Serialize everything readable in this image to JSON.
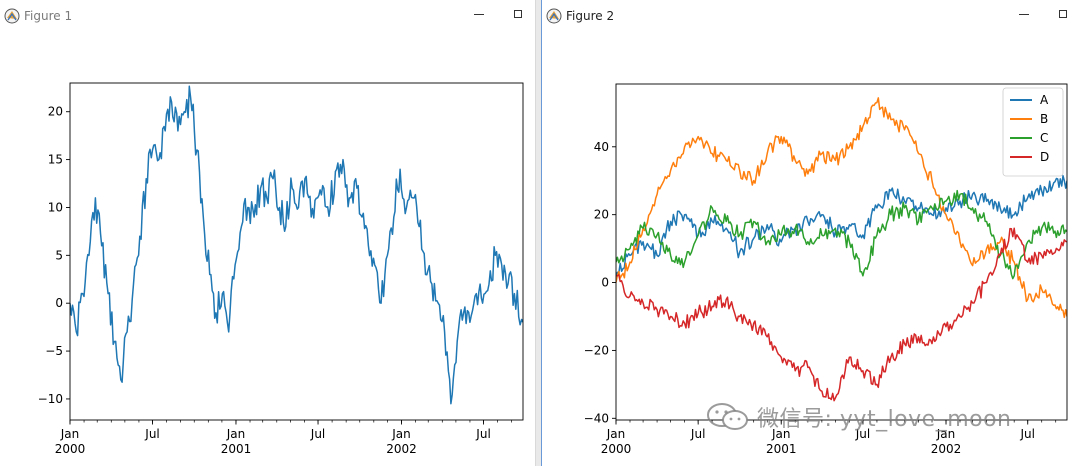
{
  "windows": [
    {
      "title": "Figure 1"
    },
    {
      "title": "Figure 2"
    }
  ],
  "watermark": "微信号: yyt_love_moon",
  "colors": {
    "A": "#1f77b4",
    "B": "#ff7f0e",
    "C": "#2ca02c",
    "D": "#d62728"
  },
  "chart_data": [
    {
      "type": "line",
      "title": "",
      "xlabel": "",
      "ylabel": "",
      "x_range": [
        "2000-01-01",
        "2002-09-26"
      ],
      "ylim": [
        -12.2,
        23
      ],
      "yticks": [
        -10,
        -5,
        0,
        5,
        10,
        15,
        20
      ],
      "xticks": [
        {
          "date": "2000-01-01",
          "label": "Jan",
          "sublabel": "2000"
        },
        {
          "date": "2000-07-01",
          "label": "Jul",
          "sublabel": ""
        },
        {
          "date": "2001-01-01",
          "label": "Jan",
          "sublabel": "2001"
        },
        {
          "date": "2001-07-01",
          "label": "Jul",
          "sublabel": ""
        },
        {
          "date": "2002-01-01",
          "label": "Jan",
          "sublabel": "2002"
        },
        {
          "date": "2002-07-01",
          "label": "Jul",
          "sublabel": ""
        }
      ],
      "grid": false,
      "series": [
        {
          "color": "#1f77b4",
          "points": [
            [
              "2000-01-01",
              0
            ],
            [
              "2000-01-15",
              -3
            ],
            [
              "2000-01-29",
              1
            ],
            [
              "2000-02-12",
              5
            ],
            [
              "2000-02-26",
              11
            ],
            [
              "2000-03-11",
              6
            ],
            [
              "2000-03-25",
              1
            ],
            [
              "2000-04-08",
              -4
            ],
            [
              "2000-04-22",
              -8
            ],
            [
              "2000-05-06",
              -3
            ],
            [
              "2000-05-20",
              2
            ],
            [
              "2000-06-03",
              7
            ],
            [
              "2000-06-17",
              13
            ],
            [
              "2000-07-01",
              16
            ],
            [
              "2000-07-15",
              15
            ],
            [
              "2000-07-29",
              18
            ],
            [
              "2000-08-12",
              21
            ],
            [
              "2000-08-26",
              18
            ],
            [
              "2000-09-09",
              20
            ],
            [
              "2000-09-23",
              21.5
            ],
            [
              "2000-10-07",
              16
            ],
            [
              "2000-10-21",
              9
            ],
            [
              "2000-11-04",
              3
            ],
            [
              "2000-11-18",
              -1
            ],
            [
              "2000-12-02",
              1
            ],
            [
              "2000-12-16",
              -3
            ],
            [
              "2000-12-30",
              4
            ],
            [
              "2001-01-13",
              8
            ],
            [
              "2001-01-27",
              10
            ],
            [
              "2001-02-10",
              9
            ],
            [
              "2001-02-24",
              12
            ],
            [
              "2001-03-10",
              11
            ],
            [
              "2001-03-24",
              13
            ],
            [
              "2001-04-07",
              10
            ],
            [
              "2001-04-21",
              8
            ],
            [
              "2001-05-05",
              12
            ],
            [
              "2001-05-19",
              10
            ],
            [
              "2001-06-02",
              13
            ],
            [
              "2001-06-16",
              9
            ],
            [
              "2001-06-30",
              11
            ],
            [
              "2001-07-14",
              12
            ],
            [
              "2001-07-28",
              10
            ],
            [
              "2001-08-11",
              14
            ],
            [
              "2001-08-25",
              15
            ],
            [
              "2001-09-08",
              11
            ],
            [
              "2001-09-22",
              13
            ],
            [
              "2001-10-06",
              9
            ],
            [
              "2001-10-20",
              6
            ],
            [
              "2001-11-03",
              4
            ],
            [
              "2001-11-17",
              0
            ],
            [
              "2001-12-01",
              5
            ],
            [
              "2001-12-15",
              9
            ],
            [
              "2001-12-29",
              14
            ],
            [
              "2002-01-12",
              10
            ],
            [
              "2002-01-26",
              11
            ],
            [
              "2002-02-09",
              8
            ],
            [
              "2002-02-23",
              3
            ],
            [
              "2002-03-09",
              2
            ],
            [
              "2002-03-23",
              0
            ],
            [
              "2002-04-06",
              -3
            ],
            [
              "2002-04-20",
              -10.5
            ],
            [
              "2002-05-04",
              -4
            ],
            [
              "2002-05-18",
              -1
            ],
            [
              "2002-06-01",
              -2
            ],
            [
              "2002-06-15",
              1
            ],
            [
              "2002-06-29",
              0
            ],
            [
              "2002-07-13",
              2
            ],
            [
              "2002-07-27",
              5
            ],
            [
              "2002-08-10",
              4
            ],
            [
              "2002-08-24",
              2
            ],
            [
              "2002-09-07",
              1
            ],
            [
              "2002-09-26",
              -2
            ]
          ]
        }
      ]
    },
    {
      "type": "line",
      "title": "",
      "xlabel": "",
      "ylabel": "",
      "x_range": [
        "2000-01-01",
        "2002-09-26"
      ],
      "ylim": [
        -40.5,
        58.5
      ],
      "yticks": [
        -40,
        -20,
        0,
        20,
        40
      ],
      "xticks": [
        {
          "date": "2000-01-01",
          "label": "Jan",
          "sublabel": "2000"
        },
        {
          "date": "2000-07-01",
          "label": "Jul",
          "sublabel": ""
        },
        {
          "date": "2001-01-01",
          "label": "Jan",
          "sublabel": "2001"
        },
        {
          "date": "2001-07-01",
          "label": "Jul",
          "sublabel": ""
        },
        {
          "date": "2002-01-01",
          "label": "Jan",
          "sublabel": "2002"
        },
        {
          "date": "2002-07-01",
          "label": "Jul",
          "sublabel": ""
        }
      ],
      "grid": false,
      "legend": {
        "position": "upper right",
        "entries": [
          "A",
          "B",
          "C",
          "D"
        ]
      },
      "series": [
        {
          "name": "A",
          "color": "#1f77b4",
          "points": [
            [
              "2000-01-01",
              2
            ],
            [
              "2000-02-01",
              8
            ],
            [
              "2000-03-01",
              12
            ],
            [
              "2000-04-01",
              8
            ],
            [
              "2000-05-01",
              18
            ],
            [
              "2000-06-01",
              20
            ],
            [
              "2000-07-01",
              14
            ],
            [
              "2000-08-01",
              18
            ],
            [
              "2000-09-01",
              16
            ],
            [
              "2000-10-01",
              9
            ],
            [
              "2000-11-01",
              13
            ],
            [
              "2000-12-01",
              17
            ],
            [
              "2001-01-01",
              12
            ],
            [
              "2001-02-01",
              16
            ],
            [
              "2001-03-01",
              18
            ],
            [
              "2001-04-01",
              20
            ],
            [
              "2001-05-01",
              15
            ],
            [
              "2001-06-01",
              17
            ],
            [
              "2001-07-01",
              14
            ],
            [
              "2001-08-01",
              22
            ],
            [
              "2001-09-01",
              27
            ],
            [
              "2001-10-01",
              24
            ],
            [
              "2001-11-01",
              22
            ],
            [
              "2001-12-01",
              20
            ],
            [
              "2002-01-01",
              22
            ],
            [
              "2002-02-01",
              24
            ],
            [
              "2002-03-01",
              26
            ],
            [
              "2002-04-01",
              24
            ],
            [
              "2002-05-01",
              22
            ],
            [
              "2002-06-01",
              20
            ],
            [
              "2002-07-01",
              25
            ],
            [
              "2002-08-01",
              27
            ],
            [
              "2002-09-26",
              30
            ]
          ]
        },
        {
          "name": "B",
          "color": "#ff7f0e",
          "points": [
            [
              "2000-01-01",
              0
            ],
            [
              "2000-02-01",
              6
            ],
            [
              "2000-03-01",
              16
            ],
            [
              "2000-04-01",
              26
            ],
            [
              "2000-05-01",
              33
            ],
            [
              "2000-06-01",
              40
            ],
            [
              "2000-07-01",
              43
            ],
            [
              "2000-08-01",
              38
            ],
            [
              "2000-09-01",
              36
            ],
            [
              "2000-10-01",
              33
            ],
            [
              "2000-11-01",
              30
            ],
            [
              "2000-12-01",
              38
            ],
            [
              "2001-01-01",
              43
            ],
            [
              "2001-02-01",
              36
            ],
            [
              "2001-03-01",
              32
            ],
            [
              "2001-04-01",
              38
            ],
            [
              "2001-05-01",
              36
            ],
            [
              "2001-06-01",
              40
            ],
            [
              "2001-07-01",
              46
            ],
            [
              "2001-08-01",
              53
            ],
            [
              "2001-09-01",
              48
            ],
            [
              "2001-10-01",
              45
            ],
            [
              "2001-11-01",
              38
            ],
            [
              "2001-12-01",
              30
            ],
            [
              "2002-01-01",
              20
            ],
            [
              "2002-02-01",
              12
            ],
            [
              "2002-03-01",
              5
            ],
            [
              "2002-04-01",
              10
            ],
            [
              "2002-05-01",
              12
            ],
            [
              "2002-06-01",
              6
            ],
            [
              "2002-07-01",
              -5
            ],
            [
              "2002-08-01",
              -2
            ],
            [
              "2002-09-26",
              -10
            ]
          ]
        },
        {
          "name": "C",
          "color": "#2ca02c",
          "points": [
            [
              "2000-01-01",
              6
            ],
            [
              "2000-02-01",
              10
            ],
            [
              "2000-03-01",
              16
            ],
            [
              "2000-04-01",
              14
            ],
            [
              "2000-05-01",
              8
            ],
            [
              "2000-06-01",
              6
            ],
            [
              "2000-07-01",
              14
            ],
            [
              "2000-08-01",
              22
            ],
            [
              "2000-09-01",
              18
            ],
            [
              "2000-10-01",
              14
            ],
            [
              "2000-11-01",
              18
            ],
            [
              "2000-12-01",
              12
            ],
            [
              "2001-01-01",
              14
            ],
            [
              "2001-02-01",
              16
            ],
            [
              "2001-03-01",
              12
            ],
            [
              "2001-04-01",
              14
            ],
            [
              "2001-05-01",
              16
            ],
            [
              "2001-06-01",
              12
            ],
            [
              "2001-07-01",
              2
            ],
            [
              "2001-08-01",
              14
            ],
            [
              "2001-09-01",
              20
            ],
            [
              "2001-10-01",
              22
            ],
            [
              "2001-11-01",
              18
            ],
            [
              "2001-12-01",
              22
            ],
            [
              "2002-01-01",
              24
            ],
            [
              "2002-02-01",
              26
            ],
            [
              "2002-03-01",
              22
            ],
            [
              "2002-04-01",
              18
            ],
            [
              "2002-05-01",
              8
            ],
            [
              "2002-06-01",
              2
            ],
            [
              "2002-07-01",
              12
            ],
            [
              "2002-08-01",
              16
            ],
            [
              "2002-09-26",
              15
            ]
          ]
        },
        {
          "name": "D",
          "color": "#d62728",
          "points": [
            [
              "2000-01-01",
              2
            ],
            [
              "2000-02-01",
              -4
            ],
            [
              "2000-03-01",
              -6
            ],
            [
              "2000-04-01",
              -8
            ],
            [
              "2000-05-01",
              -10
            ],
            [
              "2000-06-01",
              -12
            ],
            [
              "2000-07-01",
              -9
            ],
            [
              "2000-08-01",
              -7
            ],
            [
              "2000-09-01",
              -5
            ],
            [
              "2000-10-01",
              -10
            ],
            [
              "2000-11-01",
              -12
            ],
            [
              "2000-12-01",
              -16
            ],
            [
              "2001-01-01",
              -22
            ],
            [
              "2001-02-01",
              -26
            ],
            [
              "2001-03-01",
              -25
            ],
            [
              "2001-04-01",
              -32
            ],
            [
              "2001-05-01",
              -34
            ],
            [
              "2001-06-01",
              -22
            ],
            [
              "2001-07-01",
              -26
            ],
            [
              "2001-08-01",
              -30
            ],
            [
              "2001-09-01",
              -22
            ],
            [
              "2001-10-01",
              -18
            ],
            [
              "2001-11-01",
              -16
            ],
            [
              "2001-12-01",
              -18
            ],
            [
              "2002-01-01",
              -13
            ],
            [
              "2002-02-01",
              -10
            ],
            [
              "2002-03-01",
              -6
            ],
            [
              "2002-04-01",
              0
            ],
            [
              "2002-05-01",
              8
            ],
            [
              "2002-06-01",
              16
            ],
            [
              "2002-07-01",
              6
            ],
            [
              "2002-08-01",
              8
            ],
            [
              "2002-09-26",
              12
            ]
          ]
        }
      ]
    }
  ]
}
